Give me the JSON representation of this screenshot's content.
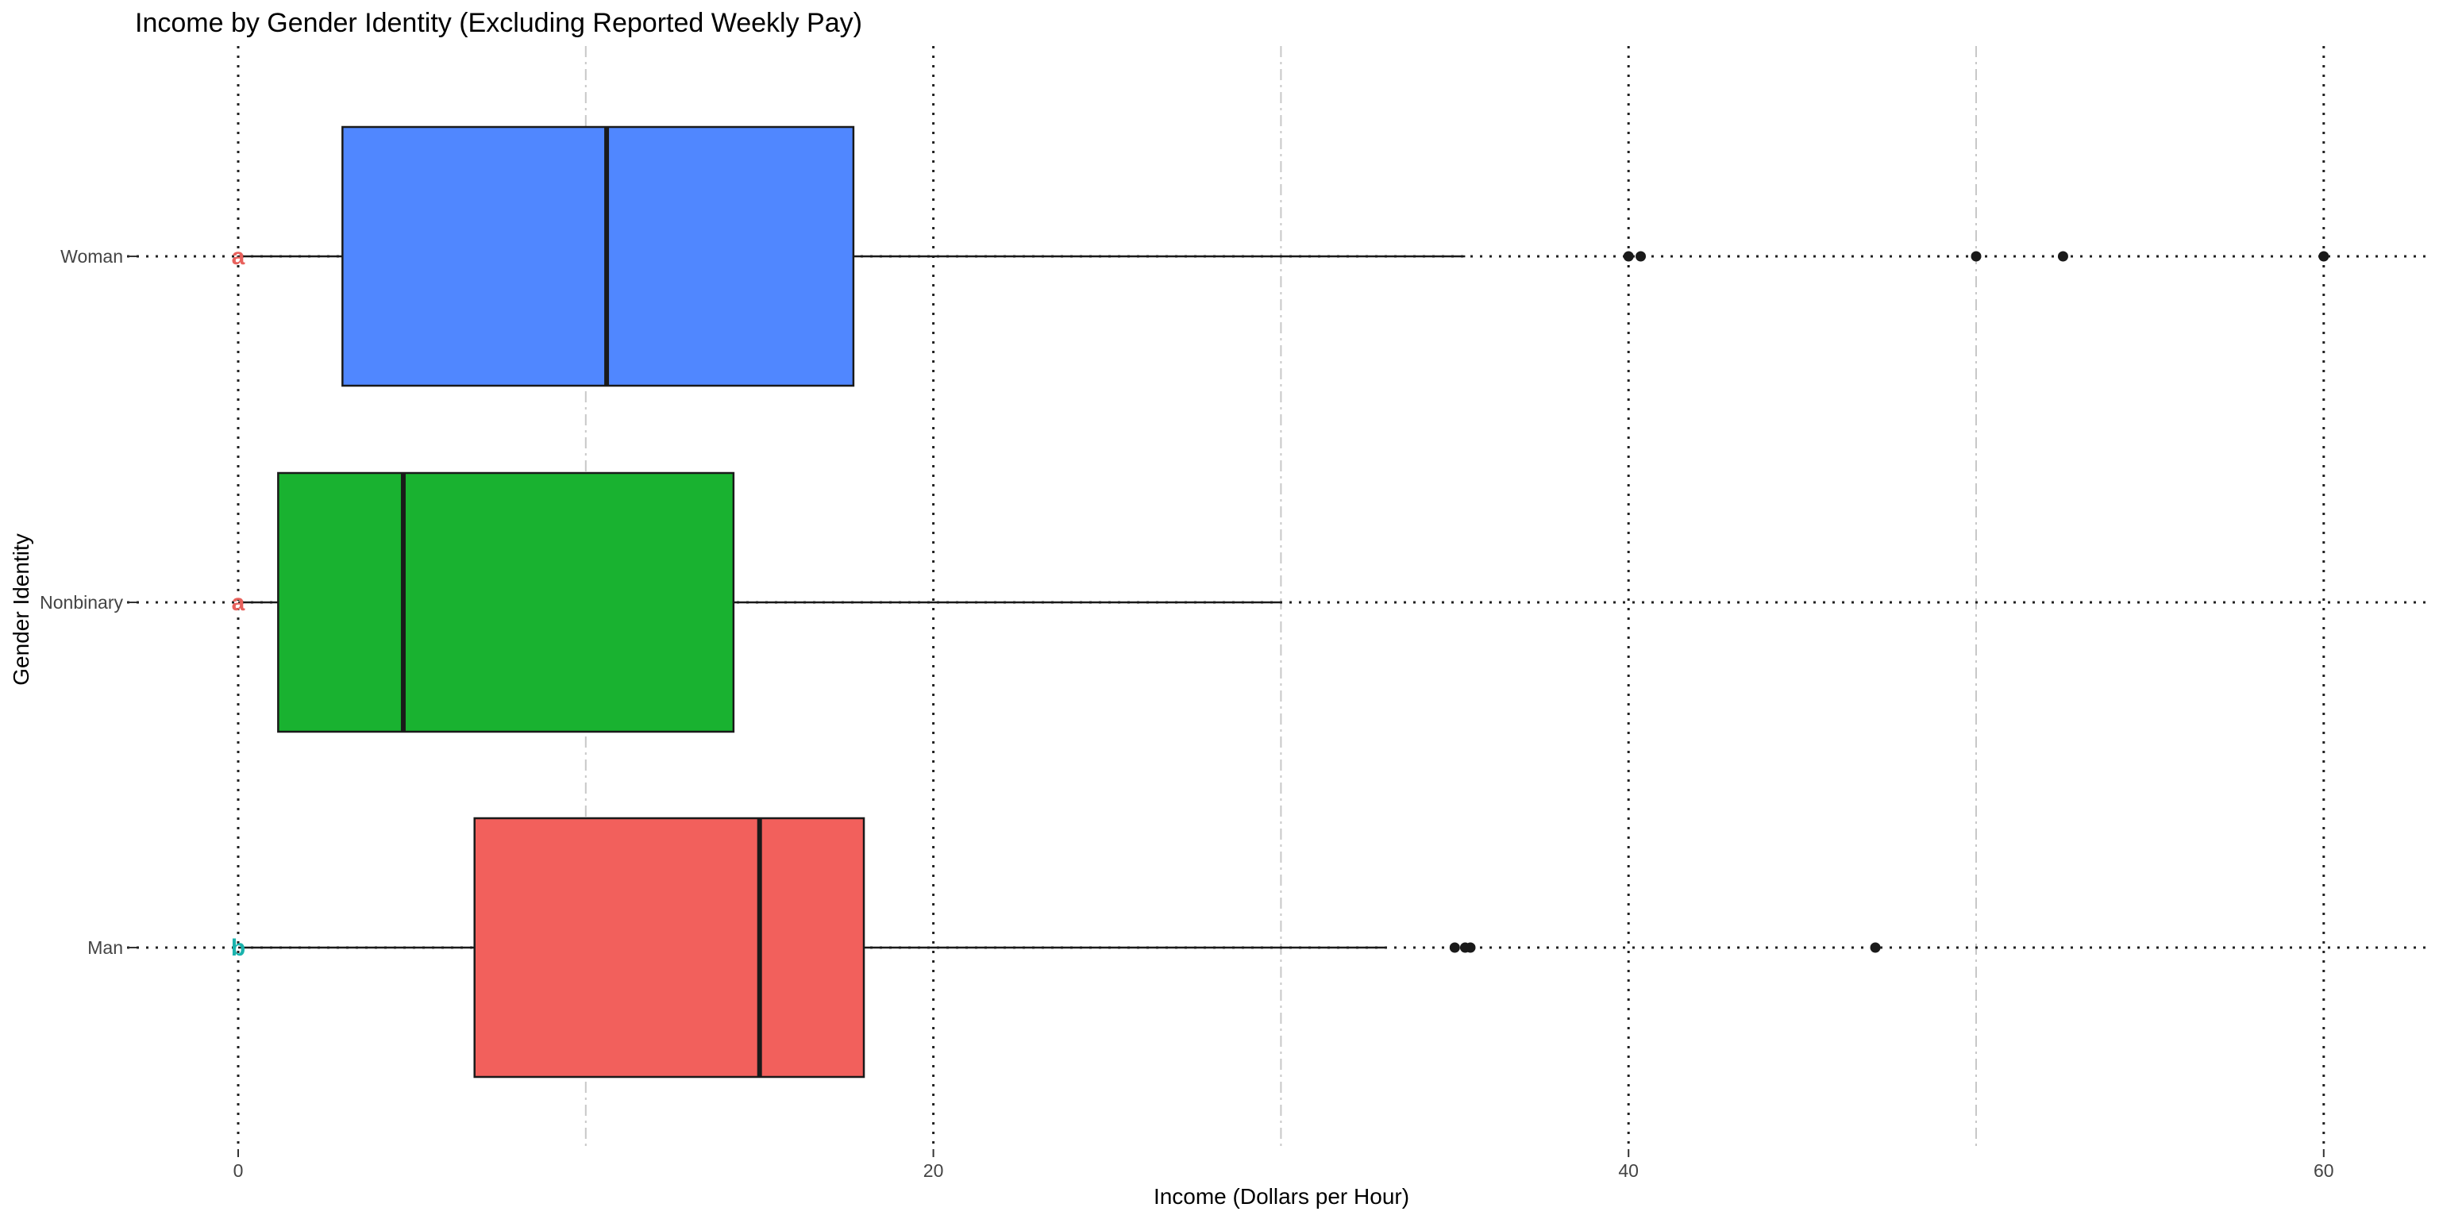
{
  "chart_data": {
    "type": "boxplot",
    "orientation": "horizontal",
    "title": "Income by Gender Identity (Excluding Reported Weekly Pay)",
    "xlabel": "Income (Dollars per Hour)",
    "ylabel": "Gender Identity",
    "xlim": [
      -3,
      63
    ],
    "x_ticks": [
      0,
      20,
      40,
      60
    ],
    "x_tick_labels": [
      "0",
      "20",
      "40",
      "60"
    ],
    "major_gridlines": [
      0,
      20,
      40,
      60
    ],
    "minor_gridlines": [
      10,
      30,
      50
    ],
    "legend": "none",
    "categories": [
      "Woman",
      "Nonbinary",
      "Man"
    ],
    "boxes": [
      {
        "category": "Woman",
        "whisker_low": 0,
        "q1": 3,
        "median": 10.6,
        "q3": 17.7,
        "whisker_high": 35.3,
        "outliers": [
          40,
          40.35,
          50,
          52.5,
          60
        ],
        "color": "#5087FF",
        "marker": "a",
        "marker_color": "#E8615C"
      },
      {
        "category": "Nonbinary",
        "whisker_low": 0,
        "q1": 1.15,
        "median": 4.75,
        "q3": 14.25,
        "whisker_high": 30,
        "outliers": [],
        "color": "#19B230",
        "marker": "a",
        "marker_color": "#E8615C"
      },
      {
        "category": "Man",
        "whisker_low": 0,
        "q1": 6.8,
        "median": 15,
        "q3": 18,
        "whisker_high": 33,
        "outliers": [
          35,
          35.3,
          35.45,
          47.1
        ],
        "color": "#F2605C",
        "marker": "b",
        "marker_color": "#1AB3AD"
      }
    ]
  }
}
